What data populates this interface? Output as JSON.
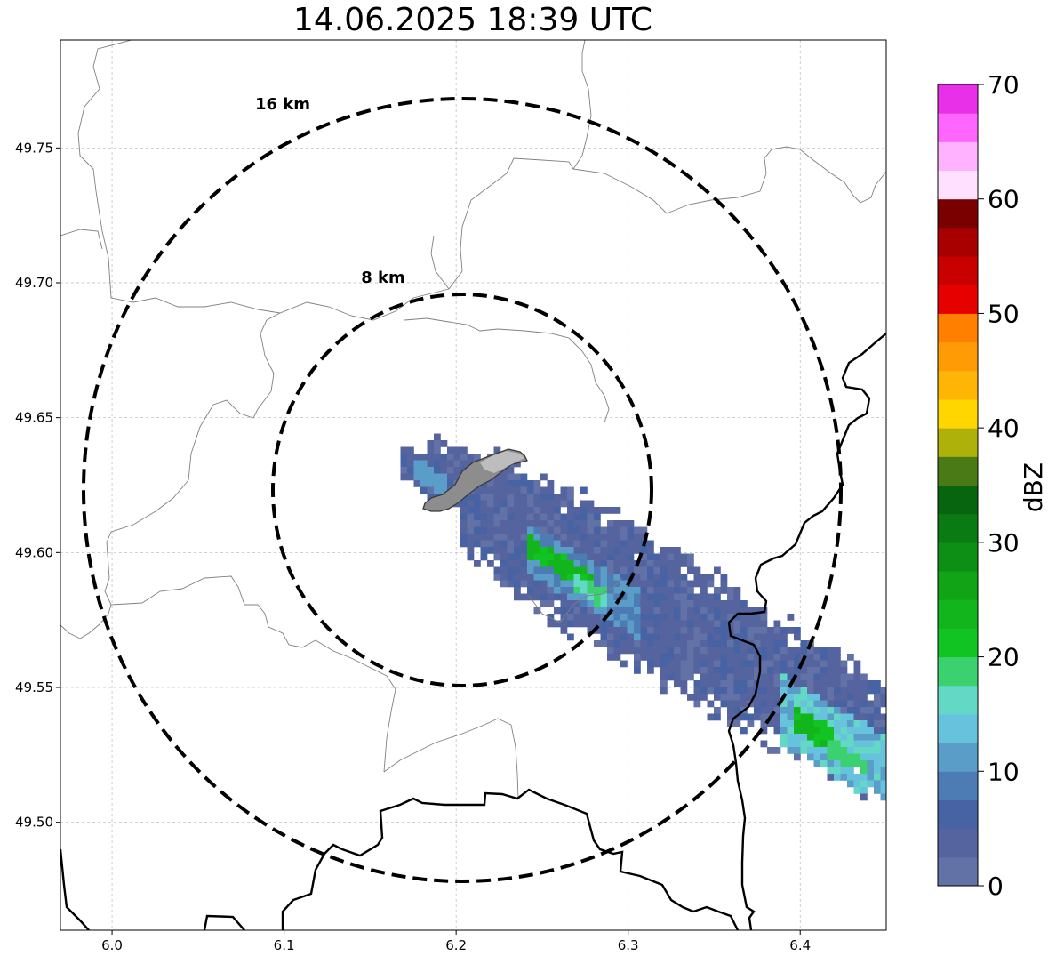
{
  "title": "14.06.2025 18:39 UTC",
  "map": {
    "x_ticks": [
      "6.0",
      "6.1",
      "6.2",
      "6.3",
      "6.4"
    ],
    "y_ticks": [
      "49.75",
      "49.70",
      "49.65",
      "49.60",
      "49.55",
      "49.50"
    ],
    "range_rings": [
      {
        "label": "16 km",
        "radius_km": 16
      },
      {
        "label": "8 km",
        "radius_km": 8
      }
    ],
    "grid": true,
    "extent": {
      "lon": [
        5.97,
        6.45
      ],
      "lat": [
        49.46,
        49.79
      ]
    }
  },
  "colorbar": {
    "label": "dBZ",
    "ticks": [
      "0",
      "10",
      "20",
      "30",
      "40",
      "50",
      "60",
      "70"
    ],
    "range": [
      0,
      70
    ],
    "step": 2.5,
    "colors": [
      "#6271a6",
      "#55649e",
      "#4863a3",
      "#4d7bb3",
      "#5b9dc9",
      "#67c2dd",
      "#63d8c4",
      "#3ad16e",
      "#12c422",
      "#12b51c",
      "#10a416",
      "#0d8e14",
      "#0a7a12",
      "#08650f",
      "#4a7a16",
      "#aeb10a",
      "#ffd600",
      "#ffb505",
      "#ff9b05",
      "#ff7f00",
      "#e60000",
      "#c80000",
      "#a80000",
      "#7a0000",
      "#ffe0ff",
      "#ffb2ff",
      "#ff66ff",
      "#e830e8"
    ]
  }
}
